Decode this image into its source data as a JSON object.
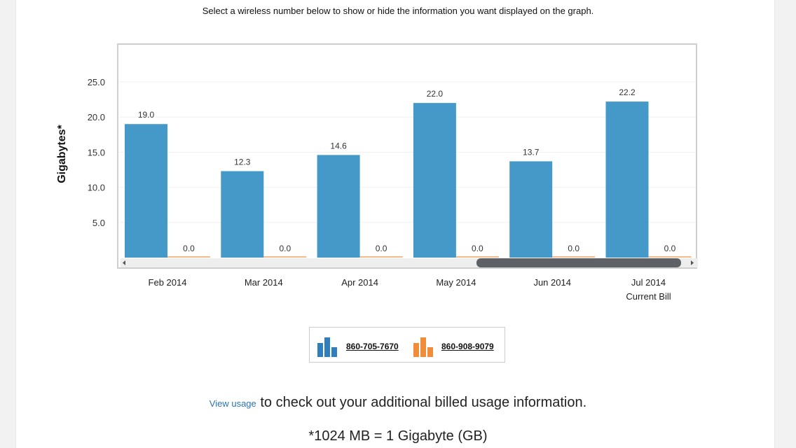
{
  "header": {
    "instruction": "Select a wireless number below to show or hide the information you want displayed on the graph."
  },
  "chart_data": {
    "type": "bar",
    "ylabel": "Gigabytes*",
    "ylim": [
      0,
      25
    ],
    "yticks": [
      "5.0",
      "10.0",
      "15.0",
      "20.0",
      "25.0"
    ],
    "categories": [
      "Feb 2014",
      "Mar 2014",
      "Apr 2014",
      "May 2014",
      "Jun 2014",
      "Jul 2014"
    ],
    "category_sublabels": [
      "",
      "",
      "",
      "",
      "",
      "Current Bill"
    ],
    "series": [
      {
        "name": "860-705-7670",
        "color": "#4499c8",
        "values": [
          19.0,
          12.3,
          14.6,
          22.0,
          13.7,
          22.2
        ],
        "labels": [
          "19.0",
          "12.3",
          "14.6",
          "22.0",
          "13.7",
          "22.2"
        ]
      },
      {
        "name": "860-908-9079",
        "color": "#f08c3a",
        "values": [
          0.0,
          0.0,
          0.0,
          0.0,
          0.0,
          0.0
        ],
        "labels": [
          "0.0",
          "0.0",
          "0.0",
          "0.0",
          "0.0",
          "0.0"
        ]
      }
    ],
    "grid": true,
    "scrollbar": true
  },
  "legend": {
    "items": [
      {
        "label": "860-705-7670",
        "icon": "blue-bar-chart-icon",
        "color": "#2f7fbf"
      },
      {
        "label": "860-908-9079",
        "icon": "orange-bar-chart-icon",
        "color": "#f08c3a"
      }
    ]
  },
  "footer": {
    "view_usage_link": "View usage",
    "view_usage_text": " to check out your additional billed usage information.",
    "note": "*1024 MB = 1 Gigabyte (GB)"
  }
}
